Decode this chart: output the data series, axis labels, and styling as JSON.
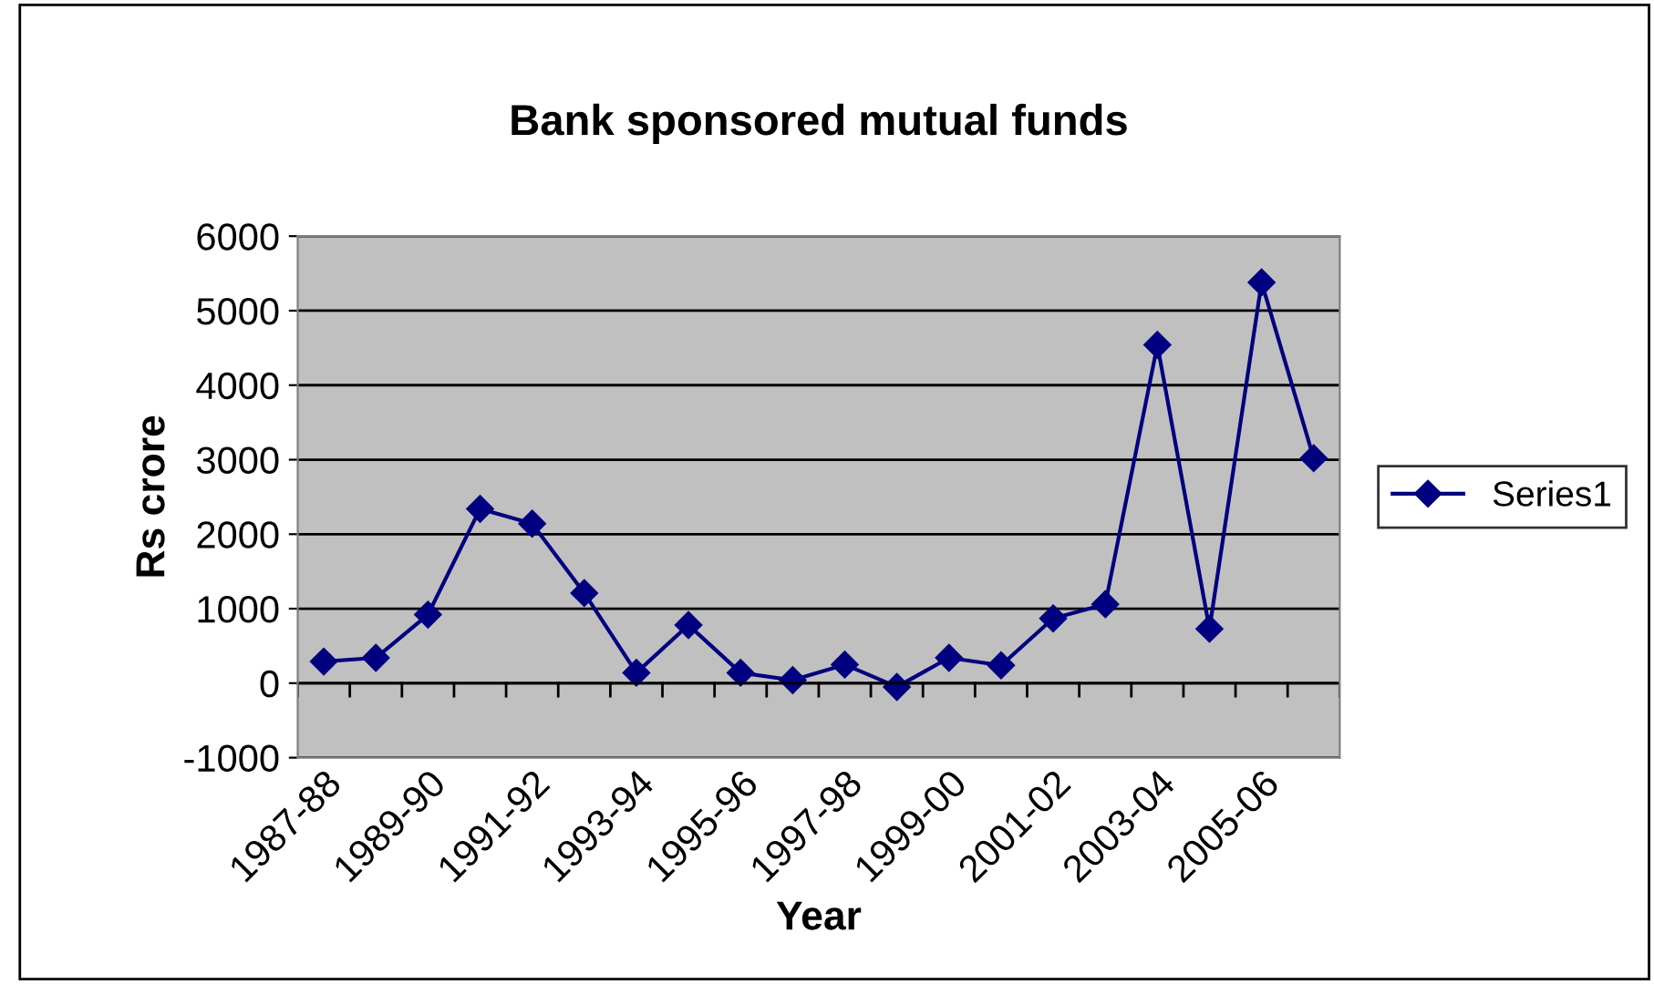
{
  "chart_data": {
    "type": "line",
    "title": "Bank sponsored mutual funds",
    "xlabel": "Year",
    "ylabel": "Rs crore",
    "categories": [
      "1987-88",
      null,
      "1989-90",
      null,
      "1991-92",
      null,
      "1993-94",
      null,
      "1995-96",
      null,
      "1997-98",
      null,
      "1999-00",
      null,
      "2001-02",
      null,
      "2003-04",
      null,
      "2005-06",
      null
    ],
    "series": [
      {
        "name": "Series1",
        "color": "#000080",
        "values": [
          290,
          340,
          920,
          2340,
          2140,
          1210,
          140,
          780,
          140,
          40,
          250,
          -50,
          340,
          240,
          870,
          1060,
          4540,
          730,
          5380,
          3020
        ]
      }
    ],
    "ylim": [
      -1000,
      6000
    ],
    "yticks": [
      -1000,
      0,
      1000,
      2000,
      3000,
      4000,
      5000,
      6000
    ],
    "grid": "y",
    "legend": "right",
    "marker": "diamond",
    "line_style": "solid"
  }
}
